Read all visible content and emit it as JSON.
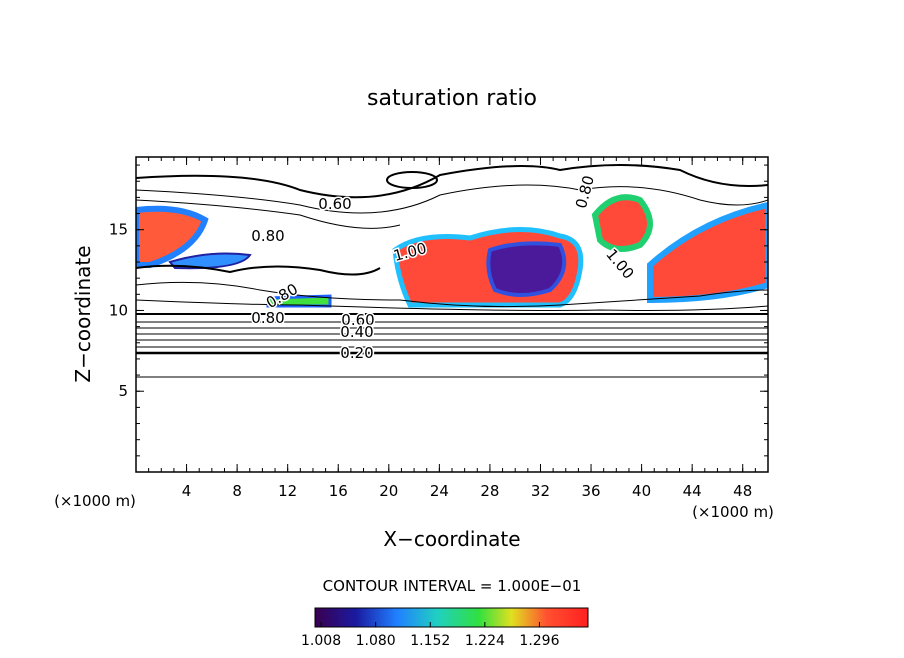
{
  "chart_data": {
    "type": "contour",
    "title": "saturation ratio",
    "x_label": "X−coordinate",
    "y_label": "Z−coordinate",
    "x_unit": "(×1000 m)",
    "y_unit": "(×1000 m)",
    "xlim": [
      0,
      50
    ],
    "ylim": [
      0,
      19.5
    ],
    "xticks": [
      4,
      8,
      12,
      16,
      20,
      24,
      28,
      32,
      36,
      40,
      44,
      48
    ],
    "yticks": [
      5,
      10,
      15
    ],
    "contour_interval": "CONTOUR INTERVAL = 1.000E−01",
    "contour_labels": [
      "0.60",
      "0.80",
      "1.00",
      "0.80",
      "1.00",
      "0.80",
      "0.80",
      "0.60",
      "0.40",
      "0.20"
    ],
    "colorbar": {
      "clim": [
        1.0,
        1.36
      ],
      "ticks": [
        1.008,
        {
          "value": 1.08,
          "label": "1.080"
        },
        1.152,
        1.224,
        1.296
      ]
    }
  }
}
